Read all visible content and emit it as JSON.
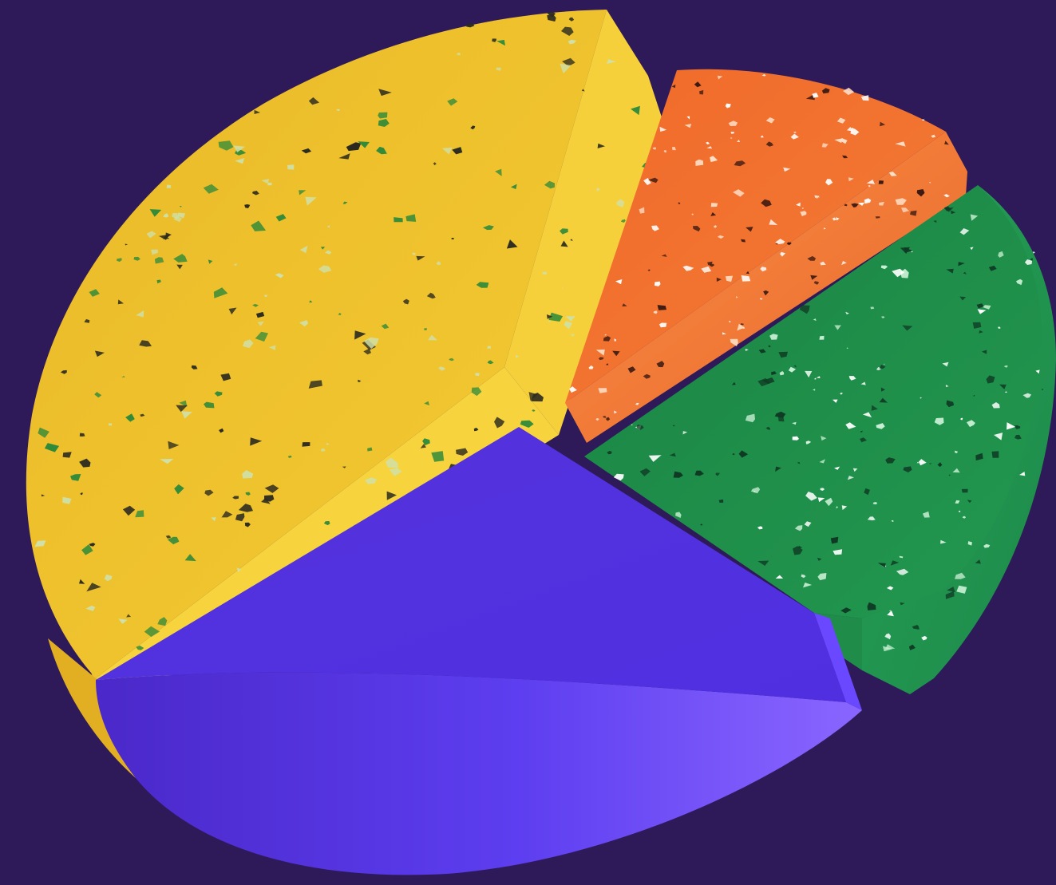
{
  "scene": {
    "kind": "3d-pie-chart-illustration",
    "background_color": "#2e1a58",
    "labels_present": false
  },
  "slices": [
    {
      "name": "yellow-slice",
      "color": "#f2c52c",
      "side_color": "#e7ba22",
      "texture": "speckled-terrazzo",
      "speckle_colors": [
        "#2a2a20",
        "#2f8a3a",
        "#cfe0a8"
      ],
      "share": 0.5
    },
    {
      "name": "purple-slice",
      "color": "#5a35e6",
      "side_color": "#7a56ff",
      "texture": "smooth",
      "speckle_colors": [],
      "share": 0.24
    },
    {
      "name": "green-slice",
      "color": "#1f8f4c",
      "side_color": "#2aa55a",
      "texture": "speckled-terrazzo",
      "speckle_colors": [
        "#0f3a24",
        "#c9f0d4",
        "#ffffff"
      ],
      "share": 0.16
    },
    {
      "name": "orange-slice",
      "color": "#f07232",
      "side_color": "#f88a42",
      "texture": "speckled-terrazzo",
      "speckle_colors": [
        "#3b1a12",
        "#ffe0c8",
        "#ffffff"
      ],
      "share": 0.1
    }
  ]
}
